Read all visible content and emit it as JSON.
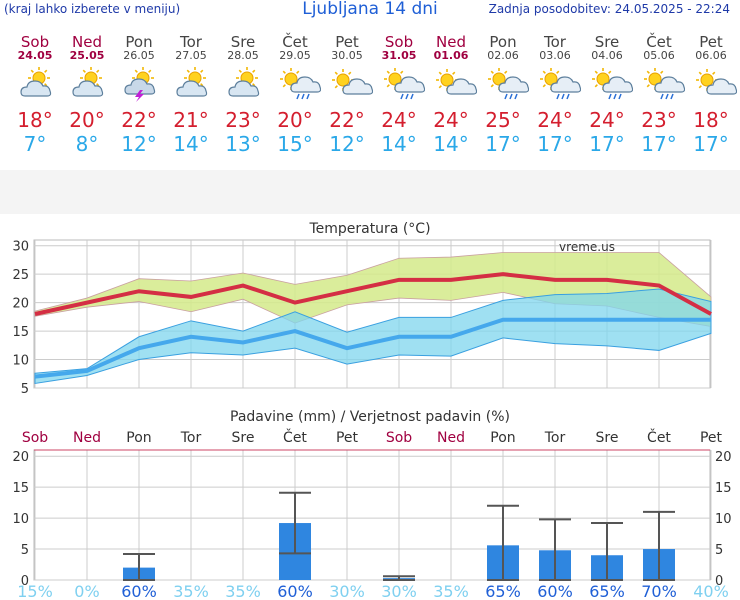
{
  "header": {
    "menu_hint": "(kraj lahko izberete v meniju)",
    "title": "Ljubljana 14 dni",
    "updated": "Zadnja posodobitev: 24.05.2025 - 22:24"
  },
  "days": [
    {
      "name": "Sob",
      "date": "24.05",
      "weekend": true,
      "icon": "partly-cloudy-icon",
      "tmax": "18°",
      "tmin": "7°"
    },
    {
      "name": "Ned",
      "date": "25.05",
      "weekend": true,
      "icon": "partly-cloudy-icon",
      "tmax": "20°",
      "tmin": "8°"
    },
    {
      "name": "Pon",
      "date": "26.05",
      "weekend": false,
      "icon": "thunderstorm-icon",
      "tmax": "22°",
      "tmin": "12°"
    },
    {
      "name": "Tor",
      "date": "27.05",
      "weekend": false,
      "icon": "partly-cloudy-icon",
      "tmax": "21°",
      "tmin": "14°"
    },
    {
      "name": "Sre",
      "date": "28.05",
      "weekend": false,
      "icon": "partly-cloudy-icon",
      "tmax": "23°",
      "tmin": "13°"
    },
    {
      "name": "Čet",
      "date": "29.05",
      "weekend": false,
      "icon": "sun-rain-icon",
      "tmax": "20°",
      "tmin": "15°"
    },
    {
      "name": "Pet",
      "date": "30.05",
      "weekend": false,
      "icon": "sun-cloud-icon",
      "tmax": "22°",
      "tmin": "12°"
    },
    {
      "name": "Sob",
      "date": "31.05",
      "weekend": true,
      "icon": "sun-rain-icon",
      "tmax": "24°",
      "tmin": "14°"
    },
    {
      "name": "Ned",
      "date": "01.06",
      "weekend": true,
      "icon": "sun-cloud-icon",
      "tmax": "24°",
      "tmin": "14°"
    },
    {
      "name": "Pon",
      "date": "02.06",
      "weekend": false,
      "icon": "sun-rain-icon",
      "tmax": "25°",
      "tmin": "17°"
    },
    {
      "name": "Tor",
      "date": "03.06",
      "weekend": false,
      "icon": "sun-rain-icon",
      "tmax": "24°",
      "tmin": "17°"
    },
    {
      "name": "Sre",
      "date": "04.06",
      "weekend": false,
      "icon": "sun-rain-icon",
      "tmax": "24°",
      "tmin": "17°"
    },
    {
      "name": "Čet",
      "date": "05.06",
      "weekend": false,
      "icon": "sun-rain-icon",
      "tmax": "23°",
      "tmin": "17°"
    },
    {
      "name": "Pet",
      "date": "06.06",
      "weekend": false,
      "icon": "sun-cloud-icon",
      "tmax": "18°",
      "tmin": "17°"
    }
  ],
  "colors": {
    "weekend": "#a00040",
    "tmax": "#d41e2e",
    "tmin": "#2aa8e8",
    "max_band": "#d4ea8a",
    "min_band": "#7fd6ee",
    "overlap": "#6cc66c",
    "bar": "#2f86e0",
    "errbar": "#555555",
    "prob_low": "#7fd0f0",
    "prob_high": "#1f5fd6"
  },
  "chart_data": [
    {
      "type": "line",
      "title": "Temperatura (°C)",
      "watermark": "vreme.us",
      "ylim": [
        5,
        31
      ],
      "yticks": [
        5,
        10,
        15,
        20,
        25,
        30
      ],
      "series": [
        {
          "key": "max",
          "values": [
            18,
            20,
            22,
            21,
            23,
            20,
            22,
            24,
            24,
            25,
            24,
            24,
            23,
            18
          ],
          "band_upper": [
            18.5,
            20.8,
            24.2,
            23.8,
            25.2,
            23.2,
            24.8,
            27.8,
            28.0,
            28.8,
            28.8,
            28.8,
            28.8,
            21.0
          ],
          "band_lower": [
            17.6,
            19.2,
            20.2,
            18.4,
            20.6,
            16.4,
            19.6,
            20.8,
            20.4,
            21.8,
            19.8,
            19.4,
            17.4,
            15.8
          ]
        },
        {
          "key": "min",
          "values": [
            7,
            8,
            12,
            14,
            13,
            15,
            12,
            14,
            14,
            17,
            17,
            17,
            17,
            17
          ],
          "band_upper": [
            7.6,
            8.4,
            14.0,
            16.8,
            15.0,
            18.4,
            14.8,
            17.4,
            17.4,
            20.4,
            21.4,
            21.6,
            22.4,
            20.2
          ],
          "band_lower": [
            5.8,
            7.2,
            10.0,
            11.2,
            10.8,
            12.0,
            9.2,
            10.8,
            10.6,
            13.8,
            12.8,
            12.4,
            11.6,
            14.6
          ]
        }
      ]
    },
    {
      "type": "bar",
      "title": "Padavine (mm) / Verjetnost padavin (%)",
      "ylim": [
        0,
        21
      ],
      "yticks": [
        0,
        5,
        10,
        15,
        20
      ],
      "categories": [
        "Sob",
        "Ned",
        "Pon",
        "Tor",
        "Sre",
        "Čet",
        "Pet",
        "Sob",
        "Ned",
        "Pon",
        "Tor",
        "Sre",
        "Čet",
        "Pet"
      ],
      "values": [
        0,
        0,
        2.0,
        0,
        0,
        9.2,
        0,
        0.3,
        0,
        5.6,
        4.8,
        4.0,
        5.0,
        0
      ],
      "err_low": [
        0,
        0,
        0,
        0,
        0,
        4.3,
        0,
        0,
        0,
        0,
        0,
        0,
        0,
        0
      ],
      "err_high": [
        0,
        0,
        4.2,
        0,
        0,
        14.1,
        0,
        0.6,
        0,
        12.0,
        9.8,
        9.2,
        11.0,
        0
      ],
      "probabilities": [
        "15%",
        "0%",
        "60%",
        "35%",
        "35%",
        "60%",
        "30%",
        "30%",
        "35%",
        "65%",
        "60%",
        "65%",
        "70%",
        "40%"
      ],
      "prob_strong": [
        false,
        false,
        true,
        false,
        false,
        true,
        false,
        false,
        false,
        true,
        true,
        true,
        true,
        false
      ]
    }
  ]
}
